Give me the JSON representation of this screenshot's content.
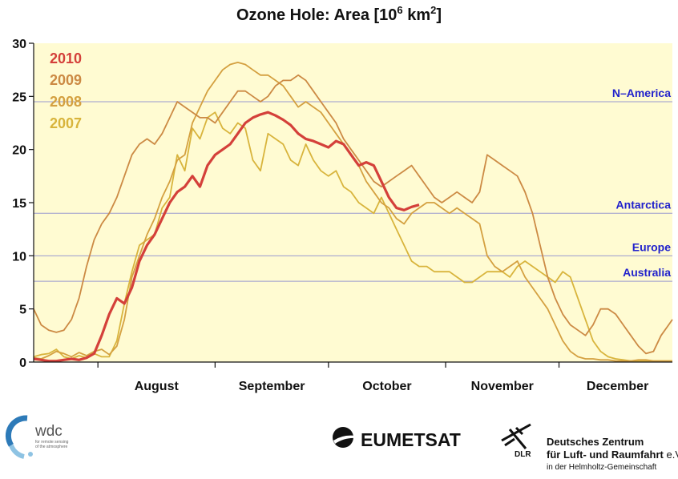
{
  "chart_data": {
    "type": "line",
    "title_main": "Ozone Hole: Area [10",
    "title_exp1": "6",
    "title_mid": " km",
    "title_exp2": "2",
    "title_end": "]",
    "xlabel": "",
    "ylabel": "",
    "x_unit": "day of year",
    "xlim": [
      196,
      365
    ],
    "ylim": [
      0,
      30
    ],
    "yticks": [
      "0",
      "5",
      "10",
      "15",
      "20",
      "25",
      "30"
    ],
    "months": [
      "August",
      "September",
      "October",
      "November",
      "December"
    ],
    "grid": false,
    "legend_position": "top-left",
    "reference_lines": [
      {
        "label": "N–America",
        "value": 24.5
      },
      {
        "label": "Antarctica",
        "value": 14.0
      },
      {
        "label": "Europe",
        "value": 10.0
      },
      {
        "label": "Australia",
        "value": 7.6
      }
    ],
    "reference_color": "#2222cc",
    "background_color": "#fffbd2",
    "series": [
      {
        "name": "2007",
        "color": "#d8b43c",
        "x": [
          196,
          198,
          200,
          202,
          204,
          206,
          208,
          210,
          212,
          214,
          216,
          218,
          220,
          222,
          224,
          226,
          228,
          230,
          232,
          234,
          236,
          238,
          240,
          242,
          244,
          246,
          248,
          250,
          252,
          254,
          256,
          258,
          260,
          262,
          264,
          266,
          268,
          270,
          272,
          274,
          276,
          278,
          280,
          282,
          284,
          286,
          288,
          290,
          292,
          294,
          296,
          298,
          300,
          302,
          304,
          306,
          308,
          310,
          312,
          314,
          316,
          318,
          320,
          322,
          324,
          326,
          328,
          330,
          332,
          334,
          336,
          338,
          340,
          342,
          344,
          346,
          348,
          350,
          352,
          354,
          356,
          358,
          360,
          362,
          364,
          365
        ],
        "values": [
          0.5,
          0.7,
          0.8,
          1.2,
          0.5,
          0.3,
          0.6,
          0.4,
          0.8,
          0.5,
          0.5,
          2.0,
          5.5,
          8.5,
          11.0,
          11.5,
          12.0,
          14.5,
          15.5,
          19.5,
          18.0,
          22.0,
          21.0,
          23.0,
          23.5,
          22.0,
          21.5,
          22.5,
          22.0,
          19.0,
          18.0,
          21.5,
          21.0,
          20.5,
          19.0,
          18.5,
          20.5,
          19.0,
          18.0,
          17.5,
          18.0,
          16.5,
          16.0,
          15.0,
          14.5,
          14.0,
          15.5,
          14.0,
          12.5,
          11.0,
          9.5,
          9.0,
          9.0,
          8.5,
          8.5,
          8.5,
          8.0,
          7.5,
          7.5,
          8.0,
          8.5,
          8.5,
          8.5,
          8.0,
          9.0,
          9.5,
          9.0,
          8.5,
          8.0,
          7.5,
          8.5,
          8.0,
          6.0,
          4.0,
          2.0,
          1.0,
          0.5,
          0.3,
          0.2,
          0.1,
          0.1,
          0.1,
          0.1,
          0.1,
          0.1,
          0.1
        ]
      },
      {
        "name": "2008",
        "color": "#d4a040",
        "x": [
          196,
          198,
          200,
          202,
          204,
          206,
          208,
          210,
          212,
          214,
          216,
          218,
          220,
          222,
          224,
          226,
          228,
          230,
          232,
          234,
          236,
          238,
          240,
          242,
          244,
          246,
          248,
          250,
          252,
          254,
          256,
          258,
          260,
          262,
          264,
          266,
          268,
          270,
          272,
          274,
          276,
          278,
          280,
          282,
          284,
          286,
          288,
          290,
          292,
          294,
          296,
          298,
          300,
          302,
          304,
          306,
          308,
          310,
          312,
          314,
          316,
          318,
          320,
          322,
          324,
          326,
          328,
          330,
          332,
          334,
          336,
          338,
          340,
          342,
          344,
          346,
          348,
          350,
          352,
          354,
          356,
          358,
          360,
          362,
          364,
          365
        ],
        "values": [
          0.4,
          0.3,
          0.6,
          1.0,
          0.8,
          0.5,
          0.9,
          0.6,
          1.0,
          1.2,
          0.7,
          1.5,
          4.0,
          8.0,
          10.0,
          12.0,
          13.5,
          15.5,
          17.0,
          19.0,
          19.5,
          22.5,
          24.0,
          25.5,
          26.5,
          27.5,
          28.0,
          28.2,
          28.0,
          27.5,
          27.0,
          27.0,
          26.5,
          26.0,
          25.0,
          24.0,
          24.5,
          24.0,
          23.5,
          22.5,
          21.5,
          20.5,
          19.5,
          18.5,
          17.0,
          16.0,
          15.0,
          14.5,
          13.5,
          13.0,
          14.0,
          14.5,
          15.0,
          15.0,
          14.5,
          14.0,
          14.5,
          14.0,
          13.5,
          13.0,
          10.0,
          9.0,
          8.5,
          9.0,
          9.5,
          8.0,
          7.0,
          6.0,
          5.0,
          3.5,
          2.0,
          1.0,
          0.5,
          0.3,
          0.3,
          0.2,
          0.2,
          0.1,
          0.1,
          0.1,
          0.2,
          0.2,
          0.1,
          0.1,
          0.1,
          0.1
        ]
      },
      {
        "name": "2009",
        "color": "#cc8a44",
        "x": [
          196,
          198,
          200,
          202,
          204,
          206,
          208,
          210,
          212,
          214,
          216,
          218,
          220,
          222,
          224,
          226,
          228,
          230,
          232,
          234,
          236,
          238,
          240,
          242,
          244,
          246,
          248,
          250,
          252,
          254,
          256,
          258,
          260,
          262,
          264,
          266,
          268,
          270,
          272,
          274,
          276,
          278,
          280,
          282,
          284,
          286,
          288,
          290,
          292,
          294,
          296,
          298,
          300,
          302,
          304,
          306,
          308,
          310,
          312,
          314,
          316,
          318,
          320,
          322,
          324,
          326,
          328,
          330,
          332,
          334,
          336,
          338,
          340,
          342,
          344,
          346,
          348,
          350,
          352,
          354,
          356,
          358,
          360,
          362,
          364,
          365
        ],
        "values": [
          5.0,
          3.5,
          3.0,
          2.8,
          3.0,
          4.0,
          6.0,
          9.0,
          11.5,
          13.0,
          14.0,
          15.5,
          17.5,
          19.5,
          20.5,
          21.0,
          20.5,
          21.5,
          23.0,
          24.5,
          24.0,
          23.5,
          23.0,
          23.0,
          22.5,
          23.5,
          24.5,
          25.5,
          25.5,
          25.0,
          24.5,
          25.0,
          26.0,
          26.5,
          26.5,
          27.0,
          26.5,
          25.5,
          24.5,
          23.5,
          22.5,
          21.0,
          20.0,
          19.0,
          18.0,
          17.0,
          16.5,
          17.0,
          17.5,
          18.0,
          18.5,
          17.5,
          16.5,
          15.5,
          15.0,
          15.5,
          16.0,
          15.5,
          15.0,
          16.0,
          19.5,
          19.0,
          18.5,
          18.0,
          17.5,
          16.0,
          14.0,
          11.0,
          8.0,
          6.0,
          4.5,
          3.5,
          3.0,
          2.5,
          3.5,
          5.0,
          5.0,
          4.5,
          3.5,
          2.5,
          1.5,
          0.8,
          1.0,
          2.5,
          3.5,
          4.0
        ]
      },
      {
        "name": "2010",
        "color": "#d4403a",
        "x": [
          196,
          198,
          200,
          202,
          204,
          206,
          208,
          210,
          212,
          214,
          216,
          218,
          220,
          222,
          224,
          226,
          228,
          230,
          232,
          234,
          236,
          238,
          240,
          242,
          244,
          246,
          248,
          250,
          252,
          254,
          256,
          258,
          260,
          262,
          264,
          266,
          268,
          270,
          272,
          274,
          276,
          278,
          280,
          282,
          284,
          286,
          288,
          290,
          292,
          294,
          296,
          298
        ],
        "values": [
          0.3,
          0.2,
          0.1,
          0.1,
          0.2,
          0.3,
          0.2,
          0.4,
          0.8,
          2.5,
          4.5,
          6.0,
          5.5,
          7.0,
          9.5,
          11.0,
          12.0,
          13.5,
          15.0,
          16.0,
          16.5,
          17.5,
          16.5,
          18.5,
          19.5,
          20.0,
          20.5,
          21.5,
          22.5,
          23.0,
          23.3,
          23.5,
          23.2,
          22.8,
          22.3,
          21.5,
          21.0,
          20.8,
          20.5,
          20.2,
          20.8,
          20.5,
          19.5,
          18.5,
          18.8,
          18.5,
          17.0,
          15.5,
          14.5,
          14.3,
          14.6,
          14.8
        ]
      }
    ]
  },
  "logos": {
    "wdc": {
      "name": "wdc",
      "subtitle_line1": "for remote sensing",
      "subtitle_line2": "of the atmosphere"
    },
    "eumetsat": {
      "name": "EUMETSAT"
    },
    "dlr": {
      "abbr": "DLR",
      "line1": "Deutsches Zentrum",
      "line2_main": "für Luft- und Raumfahrt",
      "line2_suffix": " e.V.",
      "line3": "in der Helmholtz-Gemeinschaft"
    }
  }
}
